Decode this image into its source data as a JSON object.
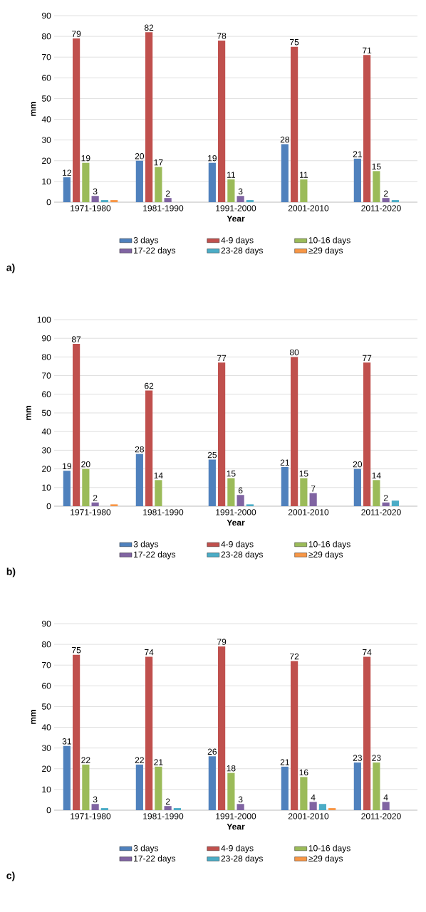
{
  "chart_data": [
    {
      "type": "bar",
      "categories": [
        "1971-1980",
        "1981-1990",
        "1991-2000",
        "2001-2010",
        "2011-2020"
      ],
      "xlabel": "Year",
      "ylabel": "mm",
      "ylim": [
        0,
        90
      ],
      "yticks": [
        0,
        10,
        20,
        30,
        40,
        50,
        60,
        70,
        80,
        90
      ],
      "grid": "y",
      "legend": "bottom",
      "annotations": [
        "a)"
      ],
      "series": [
        {
          "name": "3 days",
          "color": "#4f81bd",
          "values": [
            12,
            20,
            19,
            28,
            21
          ],
          "value_labels": [
            "12",
            "20",
            "19",
            "28",
            "21"
          ]
        },
        {
          "name": "4-9 days",
          "color": "#c0504d",
          "values": [
            79,
            82,
            78,
            75,
            71
          ],
          "value_labels": [
            "79",
            "82",
            "78",
            "75",
            "71"
          ]
        },
        {
          "name": "10-16 days",
          "color": "#9bbb59",
          "values": [
            19,
            17,
            11,
            11,
            15
          ],
          "value_labels": [
            "19",
            "17",
            "11",
            "11",
            "15"
          ]
        },
        {
          "name": "17-22 days",
          "color": "#8064a2",
          "values": [
            3,
            2,
            3,
            null,
            2
          ],
          "value_labels": [
            "3",
            "2",
            "3",
            null,
            "2"
          ]
        },
        {
          "name": "23-28 days",
          "color": "#4bacc6",
          "values": [
            1,
            null,
            1,
            null,
            1
          ]
        },
        {
          "name": "≥29 days",
          "color": "#f79646",
          "values": [
            1,
            null,
            null,
            null,
            null
          ]
        }
      ]
    },
    {
      "type": "bar",
      "categories": [
        "1971-1980",
        "1981-1990",
        "1991-2000",
        "2001-2010",
        "2011-2020"
      ],
      "xlabel": "Year",
      "ylabel": "mm",
      "ylim": [
        0,
        100
      ],
      "yticks": [
        0,
        10,
        20,
        30,
        40,
        50,
        60,
        70,
        80,
        90,
        100
      ],
      "grid": "y",
      "legend": "bottom",
      "annotations": [
        "b)"
      ],
      "series": [
        {
          "name": "3 days",
          "color": "#4f81bd",
          "values": [
            19,
            28,
            25,
            21,
            20
          ],
          "value_labels": [
            "19",
            "28",
            "25",
            "21",
            "20"
          ]
        },
        {
          "name": "4-9 days",
          "color": "#c0504d",
          "values": [
            87,
            62,
            77,
            80,
            77
          ],
          "value_labels": [
            "87",
            "62",
            "77",
            "80",
            "77"
          ]
        },
        {
          "name": "10-16 days",
          "color": "#9bbb59",
          "values": [
            20,
            14,
            15,
            15,
            14
          ],
          "value_labels": [
            "20",
            "14",
            "15",
            "15",
            "14"
          ]
        },
        {
          "name": "17-22 days",
          "color": "#8064a2",
          "values": [
            2,
            null,
            6,
            7,
            2
          ],
          "value_labels": [
            "2",
            null,
            "6",
            "7",
            "2"
          ]
        },
        {
          "name": "23-28 days",
          "color": "#4bacc6",
          "values": [
            null,
            null,
            1,
            null,
            3
          ]
        },
        {
          "name": "≥29 days",
          "color": "#f79646",
          "values": [
            1,
            null,
            null,
            null,
            null
          ]
        }
      ]
    },
    {
      "type": "bar",
      "categories": [
        "1971-1980",
        "1981-1990",
        "1991-2000",
        "2001-2010",
        "2011-2020"
      ],
      "xlabel": "Year",
      "ylabel": "mm",
      "ylim": [
        0,
        90
      ],
      "yticks": [
        0,
        10,
        20,
        30,
        40,
        50,
        60,
        70,
        80,
        90
      ],
      "grid": "y",
      "legend": "bottom",
      "annotations": [
        "c)"
      ],
      "series": [
        {
          "name": "3 days",
          "color": "#4f81bd",
          "values": [
            31,
            22,
            26,
            21,
            23
          ],
          "value_labels": [
            "31",
            "22",
            "26",
            "21",
            "23"
          ]
        },
        {
          "name": "4-9 days",
          "color": "#c0504d",
          "values": [
            75,
            74,
            79,
            72,
            74
          ],
          "value_labels": [
            "75",
            "74",
            "79",
            "72",
            "74"
          ]
        },
        {
          "name": "10-16 days",
          "color": "#9bbb59",
          "values": [
            22,
            21,
            18,
            16,
            23
          ],
          "value_labels": [
            "22",
            "21",
            "18",
            "16",
            "23"
          ]
        },
        {
          "name": "17-22 days",
          "color": "#8064a2",
          "values": [
            3,
            2,
            3,
            4,
            4
          ],
          "value_labels": [
            "3",
            "2",
            "3",
            "4",
            "4"
          ]
        },
        {
          "name": "23-28 days",
          "color": "#4bacc6",
          "values": [
            1,
            1,
            null,
            3,
            null
          ]
        },
        {
          "name": "≥29 days",
          "color": "#f79646",
          "values": [
            null,
            null,
            null,
            1,
            null
          ]
        }
      ]
    }
  ]
}
